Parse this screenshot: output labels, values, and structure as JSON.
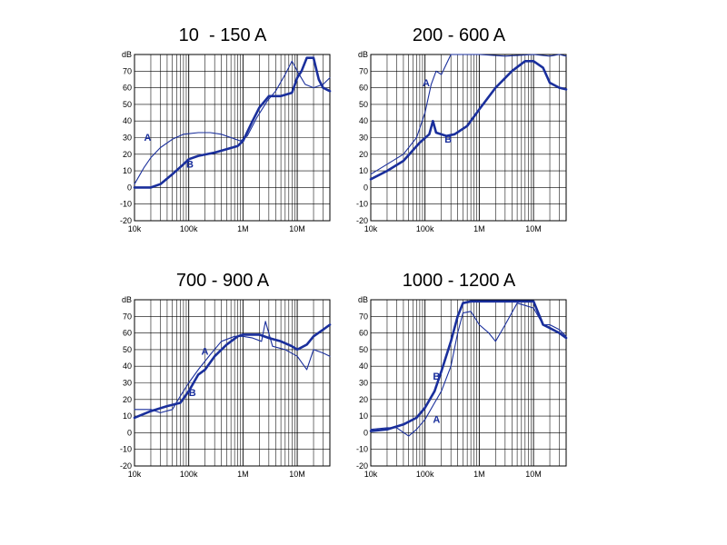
{
  "colors": {
    "curve": "#1a2f9c",
    "grid": "#000000"
  },
  "chart_data": [
    {
      "type": "line",
      "title": "10  - 150 A",
      "ylabel": "dB",
      "x_scale": "log",
      "xlim": [
        10000,
        40000000
      ],
      "ylim": [
        -20,
        80
      ],
      "yticks": [
        80,
        70,
        60,
        50,
        40,
        30,
        20,
        10,
        0,
        -10,
        -20
      ],
      "ytick_labels": [
        "dB",
        "70",
        "60",
        "50",
        "40",
        "30",
        "20",
        "10",
        "0",
        "-10",
        "-20"
      ],
      "xticks": [
        10000,
        100000,
        1000000,
        10000000
      ],
      "xtick_labels": [
        "10k",
        "100k",
        "1M",
        "10M"
      ],
      "grid": true,
      "series": [
        {
          "name": "A",
          "label_at": [
            15000,
            28
          ],
          "x": [
            10000,
            15000,
            20000,
            30000,
            50000,
            80000,
            150000,
            250000,
            400000,
            600000,
            900000,
            1200000,
            1800000,
            2800000,
            4000000,
            6000000,
            8000000,
            10000000,
            14000000,
            20000000,
            30000000,
            40000000
          ],
          "y": [
            2,
            12,
            18,
            24,
            29,
            32,
            33,
            33,
            32,
            30,
            28,
            31,
            42,
            52,
            58,
            68,
            76,
            70,
            62,
            60,
            62,
            66
          ]
        },
        {
          "name": "B",
          "label_at": [
            90000,
            12
          ],
          "x": [
            10000,
            20000,
            30000,
            50000,
            80000,
            100000,
            150000,
            300000,
            500000,
            800000,
            1000000,
            1500000,
            2000000,
            3000000,
            5000000,
            8000000,
            10000000,
            12000000,
            15000000,
            20000000,
            25000000,
            30000000,
            40000000
          ],
          "y": [
            0,
            0,
            2,
            8,
            14,
            17,
            19,
            21,
            23,
            25,
            28,
            40,
            48,
            55,
            55,
            57,
            66,
            70,
            78,
            78,
            65,
            60,
            58
          ]
        }
      ]
    },
    {
      "type": "line",
      "title": "200 - 600 A",
      "ylabel": "dB",
      "x_scale": "log",
      "xlim": [
        10000,
        40000000
      ],
      "ylim": [
        -20,
        80
      ],
      "yticks": [
        80,
        70,
        60,
        50,
        40,
        30,
        20,
        10,
        0,
        -10,
        -20
      ],
      "ytick_labels": [
        "dB",
        "70",
        "60",
        "50",
        "40",
        "30",
        "20",
        "10",
        "0",
        "-10",
        "-20"
      ],
      "xticks": [
        10000,
        100000,
        1000000,
        10000000
      ],
      "xtick_labels": [
        "10k",
        "100k",
        "1M",
        "10M"
      ],
      "grid": true,
      "series": [
        {
          "name": "A",
          "label_at": [
            90000,
            61
          ],
          "x": [
            10000,
            20000,
            40000,
            70000,
            100000,
            130000,
            160000,
            200000,
            300000,
            500000,
            1000000,
            3000000,
            10000000,
            20000000,
            30000000,
            40000000
          ],
          "y": [
            8,
            14,
            20,
            30,
            45,
            62,
            70,
            68,
            80,
            80,
            80,
            79,
            80,
            79,
            80,
            79
          ]
        },
        {
          "name": "B",
          "label_at": [
            230000,
            27
          ],
          "x": [
            10000,
            20000,
            40000,
            80000,
            120000,
            140000,
            160000,
            250000,
            350000,
            600000,
            1000000,
            2000000,
            4000000,
            7000000,
            10000000,
            15000000,
            20000000,
            30000000,
            40000000
          ],
          "y": [
            5,
            10,
            16,
            27,
            32,
            40,
            33,
            31,
            32,
            37,
            47,
            60,
            70,
            76,
            76,
            72,
            63,
            60,
            59
          ]
        }
      ]
    },
    {
      "type": "line",
      "title": "700 - 900 A",
      "ylabel": "dB",
      "x_scale": "log",
      "xlim": [
        10000,
        40000000
      ],
      "ylim": [
        -20,
        80
      ],
      "yticks": [
        80,
        70,
        60,
        50,
        40,
        30,
        20,
        10,
        0,
        -10,
        -20
      ],
      "ytick_labels": [
        "dB",
        "70",
        "60",
        "50",
        "40",
        "30",
        "20",
        "10",
        "0",
        "-10",
        "-20"
      ],
      "xticks": [
        10000,
        100000,
        1000000,
        10000000
      ],
      "xtick_labels": [
        "10k",
        "100k",
        "1M",
        "10M"
      ],
      "grid": true,
      "series": [
        {
          "name": "A",
          "label_at": [
            170000,
            47
          ],
          "x": [
            10000,
            20000,
            30000,
            50000,
            70000,
            100000,
            150000,
            250000,
            400000,
            700000,
            1000000,
            1500000,
            2200000,
            2600000,
            3500000,
            6000000,
            10000000,
            15000000,
            20000000,
            30000000,
            40000000
          ],
          "y": [
            14,
            14,
            12,
            14,
            22,
            30,
            38,
            47,
            55,
            58,
            58,
            57,
            55,
            67,
            52,
            50,
            46,
            38,
            50,
            48,
            46
          ]
        },
        {
          "name": "B",
          "label_at": [
            100000,
            22
          ],
          "x": [
            10000,
            20000,
            40000,
            70000,
            100000,
            150000,
            200000,
            300000,
            500000,
            800000,
            1000000,
            2000000,
            3000000,
            5000000,
            8000000,
            10000000,
            15000000,
            20000000,
            30000000,
            40000000
          ],
          "y": [
            9,
            13,
            16,
            18,
            25,
            35,
            38,
            46,
            53,
            58,
            59,
            59,
            57,
            55,
            52,
            50,
            53,
            58,
            62,
            65
          ]
        }
      ]
    },
    {
      "type": "line",
      "title": "1000 - 1200 A",
      "ylabel": "dB",
      "x_scale": "log",
      "xlim": [
        10000,
        40000000
      ],
      "ylim": [
        -20,
        80
      ],
      "yticks": [
        80,
        70,
        60,
        50,
        40,
        30,
        20,
        10,
        0,
        -10,
        -20
      ],
      "ytick_labels": [
        "dB",
        "70",
        "60",
        "50",
        "40",
        "30",
        "20",
        "10",
        "0",
        "-10",
        "-20"
      ],
      "xticks": [
        10000,
        100000,
        1000000,
        10000000
      ],
      "xtick_labels": [
        "10k",
        "100k",
        "1M",
        "10M"
      ],
      "grid": true,
      "series": [
        {
          "name": "A",
          "label_at": [
            140000,
            6
          ],
          "x": [
            10000,
            20000,
            30000,
            50000,
            70000,
            100000,
            150000,
            200000,
            300000,
            400000,
            500000,
            700000,
            1000000,
            1500000,
            2000000,
            3000000,
            5000000,
            8000000,
            10000000,
            15000000,
            20000000,
            30000000,
            40000000
          ],
          "y": [
            2,
            3,
            3,
            -2,
            2,
            8,
            18,
            25,
            40,
            60,
            72,
            73,
            65,
            60,
            55,
            65,
            78,
            76,
            75,
            65,
            65,
            62,
            58
          ]
        },
        {
          "name": "B",
          "label_at": [
            140000,
            32
          ],
          "x": [
            10000,
            20000,
            40000,
            70000,
            100000,
            150000,
            200000,
            300000,
            400000,
            500000,
            700000,
            1000000,
            3000000,
            5000000,
            10000000,
            15000000,
            20000000,
            30000000,
            40000000
          ],
          "y": [
            1,
            2,
            5,
            9,
            15,
            25,
            37,
            55,
            70,
            78,
            79,
            79,
            79,
            79,
            79,
            65,
            63,
            60,
            57
          ]
        }
      ]
    }
  ]
}
